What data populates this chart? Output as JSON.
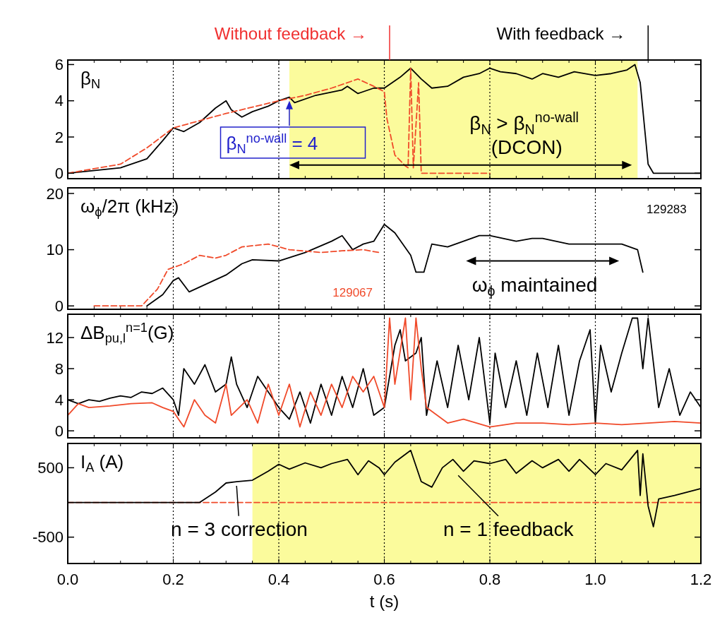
{
  "chart_data": [
    {
      "type": "line",
      "ylabel": "β$_{N}$",
      "xlim": [
        0,
        1.2
      ],
      "ylim": [
        -0.3,
        6.25
      ],
      "yticks": [
        0,
        2,
        4,
        6
      ],
      "tick_labels": "y",
      "series": [
        {
          "color": "#000000",
          "line_style": "solid",
          "x": [
            0,
            0.1,
            0.15,
            0.18,
            0.2,
            0.22,
            0.25,
            0.28,
            0.3,
            0.31,
            0.33,
            0.35,
            0.38,
            0.4,
            0.42,
            0.43,
            0.47,
            0.52,
            0.53,
            0.55,
            0.58,
            0.6,
            0.63,
            0.65,
            0.67,
            0.69,
            0.72,
            0.75,
            0.78,
            0.8,
            0.82,
            0.85,
            0.88,
            0.9,
            0.93,
            0.96,
            1.0,
            1.03,
            1.06,
            1.075,
            1.085,
            1.1,
            1.11,
            1.2
          ],
          "values": [
            0,
            0.3,
            0.8,
            1.8,
            2.5,
            2.3,
            2.8,
            3.6,
            4.0,
            3.5,
            3.1,
            3.4,
            3.7,
            4.0,
            4.2,
            3.9,
            4.3,
            4.6,
            4.8,
            4.4,
            4.7,
            4.7,
            5.3,
            5.8,
            5.2,
            4.7,
            4.8,
            5.3,
            5.5,
            5.8,
            5.6,
            5.5,
            5.2,
            5.5,
            5.3,
            5.6,
            5.4,
            5.5,
            5.7,
            6.0,
            5.0,
            0.5,
            0,
            0
          ]
        },
        {
          "color": "#f04a2a",
          "line_style": "dashed",
          "x": [
            0,
            0.1,
            0.15,
            0.2,
            0.3,
            0.4,
            0.45,
            0.5,
            0.55,
            0.58,
            0.6,
            0.605,
            0.62,
            0.64,
            0.645,
            0.65,
            0.655,
            0.665,
            0.67,
            0.8
          ],
          "values": [
            0,
            0.5,
            1.4,
            2.5,
            3.3,
            4.0,
            4.3,
            4.7,
            5.2,
            4.8,
            4.5,
            3.0,
            1.0,
            0.4,
            0.3,
            5.8,
            0.3,
            5.0,
            0,
            0
          ]
        }
      ],
      "ref_lines": [
        {
          "axis": "x",
          "value": 0.2,
          "line_style": "dotted"
        },
        {
          "axis": "x",
          "value": 0.4,
          "line_style": "dotted"
        },
        {
          "axis": "x",
          "value": 0.6,
          "line_style": "dotted"
        },
        {
          "axis": "x",
          "value": 0.8,
          "line_style": "dotted"
        },
        {
          "axis": "x",
          "value": 1,
          "line_style": "dotted"
        }
      ],
      "bands": [
        {
          "axis": "x",
          "from": 0.42,
          "to": 1.08,
          "color": "#fbfb9c"
        }
      ],
      "annotations": [
        "Without feedback →",
        "With feedback →",
        {
          "text": "β$_{N}$$^{no-wall}$ = 4",
          "x": 0.42,
          "y": 4
        },
        "β$_{N}$ > β$_{N}$$^{no-wall}$",
        "(DCON)"
      ]
    },
    {
      "type": "line",
      "ylabel": "ω$_{ϕ}$/2π (kHz)",
      "xlim": [
        0,
        1.2
      ],
      "ylim": [
        -0.6,
        21
      ],
      "yticks": [
        0,
        10,
        20
      ],
      "tick_labels": "y",
      "series": [
        {
          "color": "#000000",
          "line_style": "solid",
          "x": [
            0.15,
            0.18,
            0.2,
            0.21,
            0.23,
            0.3,
            0.33,
            0.35,
            0.4,
            0.45,
            0.5,
            0.52,
            0.54,
            0.56,
            0.58,
            0.6,
            0.62,
            0.65,
            0.66,
            0.675,
            0.69,
            0.72,
            0.78,
            0.8,
            0.85,
            0.88,
            0.9,
            0.95,
            1.0,
            1.05,
            1.08,
            1.09
          ],
          "values": [
            0,
            2,
            4.5,
            5,
            2.5,
            5.5,
            7.5,
            8.2,
            8,
            9.5,
            11.5,
            12.5,
            10,
            11,
            11.5,
            14.5,
            13,
            9,
            6,
            6,
            11,
            10.5,
            12.5,
            12.5,
            11.5,
            12,
            12,
            11,
            11,
            11,
            10,
            6
          ]
        },
        {
          "color": "#f04a2a",
          "line_style": "dashed",
          "x": [
            0.05,
            0.14,
            0.17,
            0.19,
            0.22,
            0.25,
            0.28,
            0.3,
            0.33,
            0.38,
            0.42,
            0.48,
            0.52,
            0.56,
            0.59
          ],
          "values": [
            0,
            0,
            3,
            6.5,
            7.5,
            9,
            8.5,
            9,
            10.5,
            11,
            10,
            9.5,
            9.8,
            10,
            9.5
          ]
        }
      ],
      "ref_lines": [
        {
          "axis": "x",
          "value": 0.2,
          "line_style": "dotted"
        },
        {
          "axis": "x",
          "value": 0.4,
          "line_style": "dotted"
        },
        {
          "axis": "x",
          "value": 0.6,
          "line_style": "dotted"
        },
        {
          "axis": "x",
          "value": 0.8,
          "line_style": "dotted"
        },
        {
          "axis": "x",
          "value": 1,
          "line_style": "dotted"
        }
      ],
      "annotations": [
        "129283",
        "129067",
        "ω$_{ϕ}$ maintained"
      ]
    },
    {
      "type": "line",
      "ylabel": "ΔB$_{pu,l}$$^{n=1}$(G)",
      "xlim": [
        0,
        1.2
      ],
      "ylim": [
        -0.9,
        15
      ],
      "yticks": [
        0,
        4,
        8,
        12
      ],
      "tick_labels": "y",
      "series": [
        {
          "color": "#000000",
          "line_style": "solid",
          "x": [
            0,
            0.02,
            0.04,
            0.06,
            0.08,
            0.1,
            0.12,
            0.14,
            0.16,
            0.18,
            0.2,
            0.21,
            0.22,
            0.24,
            0.26,
            0.28,
            0.3,
            0.31,
            0.32,
            0.34,
            0.36,
            0.38,
            0.4,
            0.42,
            0.44,
            0.46,
            0.48,
            0.5,
            0.52,
            0.54,
            0.56,
            0.58,
            0.6,
            0.62,
            0.63,
            0.64,
            0.66,
            0.67,
            0.68,
            0.7,
            0.72,
            0.74,
            0.76,
            0.78,
            0.8,
            0.81,
            0.83,
            0.85,
            0.87,
            0.89,
            0.91,
            0.93,
            0.95,
            0.97,
            0.99,
            1.0,
            1.01,
            1.03,
            1.05,
            1.07,
            1.08,
            1.09,
            1.1,
            1.12,
            1.14,
            1.16,
            1.18,
            1.2
          ],
          "values": [
            4,
            3.5,
            4,
            3.8,
            4.2,
            4.5,
            4.3,
            5,
            4.8,
            5.5,
            4,
            2,
            8,
            6,
            8.5,
            5,
            6,
            9.5,
            6,
            3,
            7,
            5,
            3,
            1.5,
            5,
            1,
            6,
            2,
            7,
            3,
            8,
            2,
            3,
            11,
            13,
            9,
            10,
            12,
            2,
            9,
            3,
            11,
            4,
            12,
            1,
            10,
            3,
            9,
            2,
            10,
            3,
            11,
            2,
            9,
            13,
            1,
            11,
            5,
            10,
            14.5,
            14.5,
            8,
            14.5,
            3,
            8,
            2,
            5,
            3
          ]
        },
        {
          "color": "#f04a2a",
          "line_style": "solid",
          "x": [
            0,
            0.02,
            0.04,
            0.08,
            0.12,
            0.16,
            0.18,
            0.2,
            0.22,
            0.24,
            0.26,
            0.28,
            0.3,
            0.31,
            0.34,
            0.36,
            0.38,
            0.4,
            0.42,
            0.44,
            0.46,
            0.48,
            0.5,
            0.52,
            0.54,
            0.56,
            0.58,
            0.6,
            0.61,
            0.62,
            0.64,
            0.65,
            0.66,
            0.67,
            0.68,
            0.7,
            0.72,
            0.75,
            0.8,
            0.85,
            0.9,
            0.95,
            1.0,
            1.05,
            1.1,
            1.15,
            1.2
          ],
          "values": [
            2,
            3.5,
            3,
            3.2,
            3.5,
            3.6,
            3,
            2.5,
            0.5,
            4,
            2,
            1,
            6,
            2,
            4,
            1,
            6,
            2,
            6,
            0.5,
            5,
            2,
            6,
            3,
            7,
            5,
            7,
            3,
            14.5,
            6,
            14.5,
            4,
            14.5,
            8,
            3,
            2,
            1,
            1.5,
            0.5,
            1,
            1,
            0.8,
            1,
            0.8,
            1,
            1.2,
            1
          ]
        }
      ],
      "ref_lines": [
        {
          "axis": "x",
          "value": 0.2,
          "line_style": "dotted"
        },
        {
          "axis": "x",
          "value": 0.4,
          "line_style": "dotted"
        },
        {
          "axis": "x",
          "value": 0.6,
          "line_style": "dotted"
        },
        {
          "axis": "x",
          "value": 0.8,
          "line_style": "dotted"
        },
        {
          "axis": "x",
          "value": 1,
          "line_style": "dotted"
        }
      ]
    },
    {
      "type": "line",
      "ylabel": "I$_{A}$ (A)",
      "xlabel": "t (s)",
      "xlim": [
        0,
        1.2
      ],
      "xticks": [
        {
          "value": 0,
          "label": "0.0"
        },
        {
          "value": 0.2,
          "label": "0.2"
        },
        {
          "value": 0.4,
          "label": "0.4"
        },
        {
          "value": 0.6,
          "label": "0.6"
        },
        {
          "value": 0.8,
          "label": "0.8"
        },
        {
          "value": 1,
          "label": "1.0"
        },
        {
          "value": 1.2,
          "label": "1.2"
        }
      ],
      "ylim": [
        -880,
        850
      ],
      "yticks": [
        -500,
        500
      ],
      "series": [
        {
          "color": "#f04a2a",
          "line_style": "dashed",
          "x": [
            0,
            1.2
          ],
          "values": [
            0,
            0
          ]
        },
        {
          "color": "#000000",
          "line_style": "solid",
          "x": [
            0,
            0.25,
            0.28,
            0.3,
            0.32,
            0.35,
            0.38,
            0.4,
            0.42,
            0.45,
            0.48,
            0.5,
            0.53,
            0.55,
            0.57,
            0.59,
            0.6,
            0.62,
            0.65,
            0.67,
            0.69,
            0.71,
            0.73,
            0.75,
            0.77,
            0.8,
            0.83,
            0.85,
            0.88,
            0.9,
            0.93,
            0.95,
            0.97,
            1.0,
            1.02,
            1.05,
            1.08,
            1.085,
            1.09,
            1.1,
            1.11,
            1.12,
            1.15,
            1.2
          ],
          "values": [
            0,
            0,
            150,
            280,
            300,
            320,
            450,
            550,
            480,
            570,
            500,
            560,
            620,
            400,
            600,
            500,
            400,
            580,
            750,
            300,
            220,
            500,
            620,
            450,
            600,
            560,
            620,
            420,
            600,
            500,
            620,
            450,
            620,
            400,
            560,
            470,
            750,
            100,
            700,
            -50,
            -350,
            50,
            100,
            200
          ]
        }
      ],
      "ref_lines": [
        {
          "axis": "x",
          "value": 0.2,
          "line_style": "dotted"
        },
        {
          "axis": "x",
          "value": 0.4,
          "line_style": "dotted"
        },
        {
          "axis": "x",
          "value": 0.6,
          "line_style": "dotted"
        },
        {
          "axis": "x",
          "value": 0.8,
          "line_style": "dotted"
        },
        {
          "axis": "x",
          "value": 1,
          "line_style": "dotted"
        }
      ],
      "bands": [
        {
          "axis": "x",
          "from": 0.35,
          "to": 1.2,
          "color": "#fbfb9c"
        }
      ],
      "annotations": [
        {
          "text": "n = 3 correction",
          "x": 0.32,
          "y": 300
        },
        {
          "text": "n = 1 feedback",
          "x": 0.74,
          "y": 450
        }
      ]
    }
  ]
}
